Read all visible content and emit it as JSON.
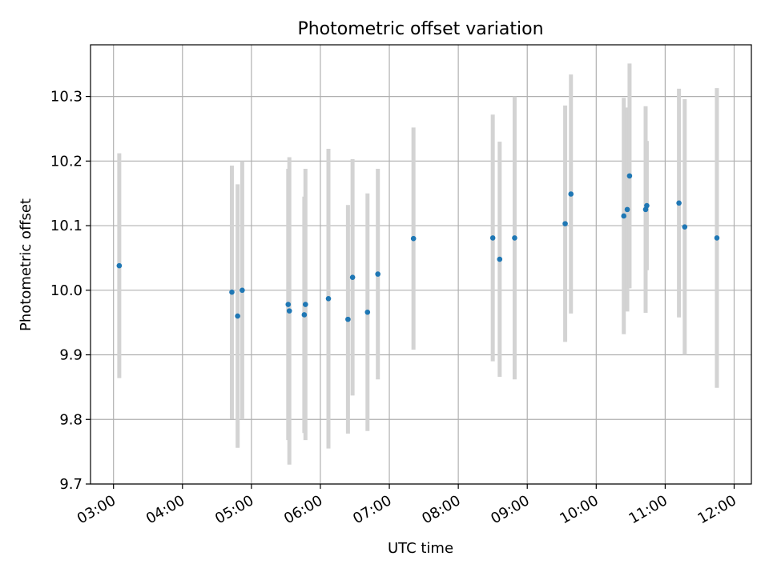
{
  "chart_data": {
    "type": "scatter",
    "title": "Photometric offset variation",
    "xlabel": "UTC time",
    "ylabel": "Photometric offset",
    "x_ticks": [
      "03:00",
      "04:00",
      "05:00",
      "06:00",
      "07:00",
      "08:00",
      "09:00",
      "10:00",
      "11:00",
      "12:00"
    ],
    "y_ticks": [
      "9.7",
      "9.8",
      "9.9",
      "10.0",
      "10.1",
      "10.2",
      "10.3"
    ],
    "xlim": [
      "02:40",
      "12:15"
    ],
    "ylim": [
      9.7,
      10.38
    ],
    "grid": true,
    "error_bar_color": "#d3d3d3",
    "marker_color": "#1f77b4",
    "points": [
      {
        "x": "03:05",
        "y": 10.038,
        "yerr": 0.174
      },
      {
        "x": "04:43",
        "y": 9.997,
        "yerr": 0.196
      },
      {
        "x": "04:48",
        "y": 9.96,
        "yerr": 0.204
      },
      {
        "x": "04:52",
        "y": 10.0,
        "yerr": 0.2
      },
      {
        "x": "05:32",
        "y": 9.978,
        "yerr": 0.21
      },
      {
        "x": "05:33",
        "y": 9.968,
        "yerr": 0.238
      },
      {
        "x": "05:46",
        "y": 9.962,
        "yerr": 0.183
      },
      {
        "x": "05:47",
        "y": 9.978,
        "yerr": 0.21
      },
      {
        "x": "06:07",
        "y": 9.987,
        "yerr": 0.232
      },
      {
        "x": "06:24",
        "y": 9.955,
        "yerr": 0.177
      },
      {
        "x": "06:28",
        "y": 10.02,
        "yerr": 0.183
      },
      {
        "x": "06:41",
        "y": 9.966,
        "yerr": 0.184
      },
      {
        "x": "06:50",
        "y": 10.025,
        "yerr": 0.163
      },
      {
        "x": "07:21",
        "y": 10.08,
        "yerr": 0.172
      },
      {
        "x": "08:30",
        "y": 10.081,
        "yerr": 0.191
      },
      {
        "x": "08:36",
        "y": 10.048,
        "yerr": 0.182
      },
      {
        "x": "08:49",
        "y": 10.081,
        "yerr": 0.219
      },
      {
        "x": "09:33",
        "y": 10.103,
        "yerr": 0.183
      },
      {
        "x": "09:38",
        "y": 10.149,
        "yerr": 0.185
      },
      {
        "x": "10:24",
        "y": 10.115,
        "yerr": 0.183
      },
      {
        "x": "10:27",
        "y": 10.125,
        "yerr": 0.158
      },
      {
        "x": "10:29",
        "y": 10.177,
        "yerr": 0.174
      },
      {
        "x": "10:43",
        "y": 10.125,
        "yerr": 0.16
      },
      {
        "x": "10:44",
        "y": 10.131,
        "yerr": 0.1
      },
      {
        "x": "11:12",
        "y": 10.135,
        "yerr": 0.177
      },
      {
        "x": "11:17",
        "y": 10.098,
        "yerr": 0.198
      },
      {
        "x": "11:45",
        "y": 10.081,
        "yerr": 0.232
      }
    ]
  }
}
